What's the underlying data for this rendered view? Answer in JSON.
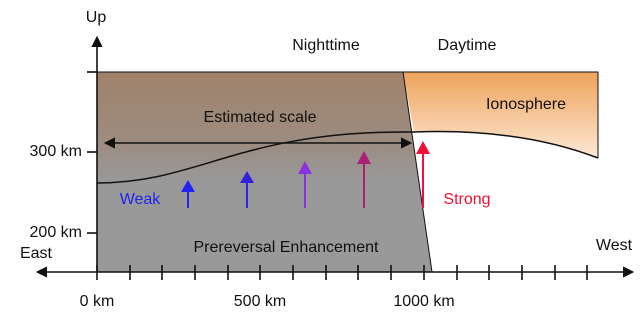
{
  "axis": {
    "y_label": "Up",
    "x_left": "East",
    "x_right": "West",
    "y_ticks": [
      "300 km",
      "200 km"
    ],
    "x_ticks": [
      "0 km",
      "500 km",
      "1000 km"
    ]
  },
  "labels": {
    "night": "Nighttime",
    "day": "Daytime",
    "ionosphere": "Ionosphere",
    "scale": "Estimated scale",
    "weak": "Weak",
    "strong": "Strong",
    "pre": "Prereversal Enhancement"
  }
}
